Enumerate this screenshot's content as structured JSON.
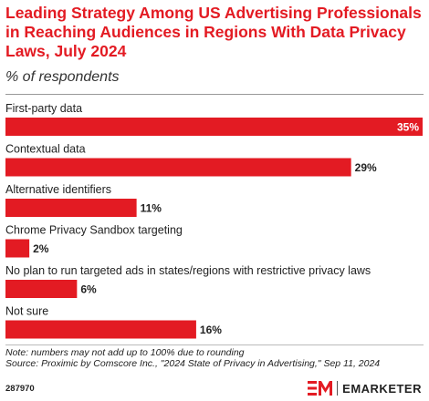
{
  "header": {
    "title": "Leading Strategy Among US Advertising Professionals in Reaching Audiences in Regions With Data Privacy Laws, July 2024",
    "subtitle": "% of respondents"
  },
  "chart_data": {
    "type": "bar",
    "orientation": "horizontal",
    "categories": [
      "First-party data",
      "Contextual data",
      "Alternative identifiers",
      "Chrome Privacy Sandbox targeting",
      "No plan to run targeted ads in states/regions with restrictive privacy laws",
      "Not sure"
    ],
    "values": [
      35,
      29,
      11,
      2,
      6,
      16
    ],
    "value_labels": [
      "35%",
      "29%",
      "11%",
      "2%",
      "6%",
      "16%"
    ],
    "unit": "%",
    "xlim": [
      0,
      35
    ],
    "bar_color": "#e31b23",
    "grid": false,
    "legend": "none"
  },
  "footer": {
    "note": "Note: numbers may not add up to 100% due to rounding",
    "source": "Source: Proximic by Comscore Inc., \"2024 State of Privacy in Advertising,\" Sep 11, 2024",
    "chart_id": "287970",
    "brand": "EMARKETER",
    "brand_color": "#e31b23"
  }
}
